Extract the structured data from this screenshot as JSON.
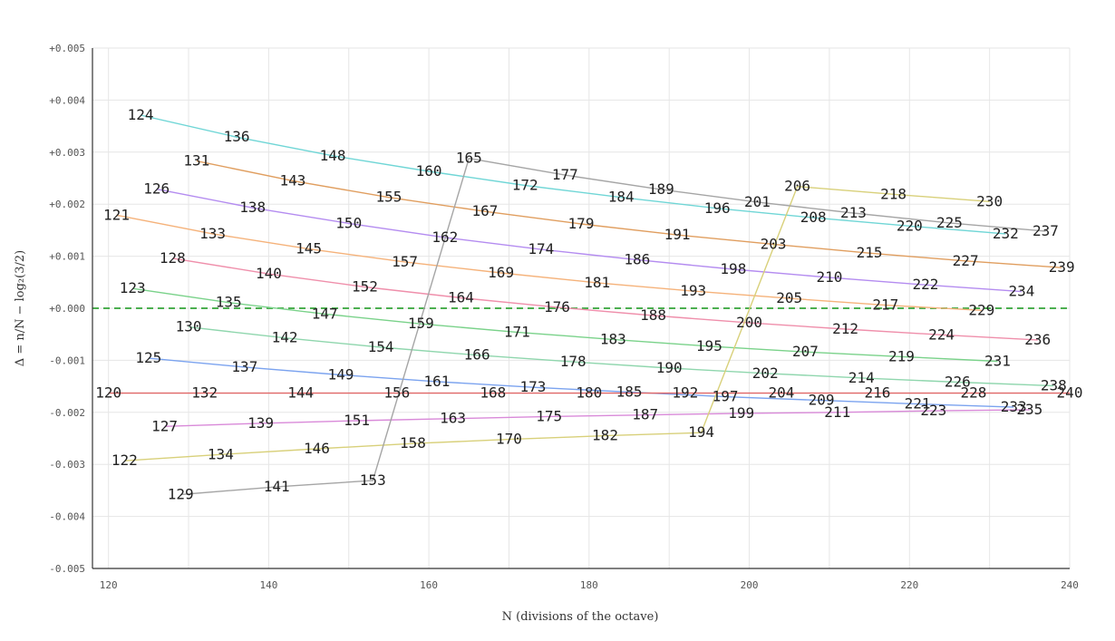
{
  "chart_data": {
    "type": "line",
    "xlabel": "N (divisions of the octave)",
    "ylabel": "Δ = n/N − log₂(3/2)",
    "xlim": [
      118,
      240
    ],
    "ylim": [
      -0.005,
      0.005
    ],
    "xticks": [
      120,
      140,
      160,
      180,
      200,
      220,
      240
    ],
    "yticks": [
      {
        "value": 0.005,
        "label": "+0.005"
      },
      {
        "value": 0.004,
        "label": "+0.004"
      },
      {
        "value": 0.003,
        "label": "+0.003"
      },
      {
        "value": 0.002,
        "label": "+0.002"
      },
      {
        "value": 0.001,
        "label": "+0.001"
      },
      {
        "value": 0.0,
        "label": "+0.000"
      },
      {
        "value": -0.001,
        "label": "-0.001"
      },
      {
        "value": -0.002,
        "label": "-0.002"
      },
      {
        "value": -0.003,
        "label": "-0.003"
      },
      {
        "value": -0.004,
        "label": "-0.004"
      },
      {
        "value": -0.005,
        "label": "-0.005"
      }
    ],
    "zero_line": {
      "value": 0,
      "color": "#4caf50",
      "style": "dashed"
    },
    "grid": true,
    "series": [
      {
        "color": "#70d6d6",
        "points": [
          [
            124,
            0.00371
          ],
          [
            136,
            0.00329
          ],
          [
            148,
            0.00293
          ],
          [
            160,
            0.00263
          ],
          [
            172,
            0.00236
          ],
          [
            184,
            0.00213
          ],
          [
            196,
            0.00192
          ],
          [
            208,
            0.00174
          ],
          [
            220,
            0.00158
          ],
          [
            232,
            0.00143
          ]
        ]
      },
      {
        "color": "#e09e5f",
        "points": [
          [
            131,
            0.00283
          ],
          [
            143,
            0.00245
          ],
          [
            155,
            0.00213
          ],
          [
            167,
            0.00186
          ],
          [
            179,
            0.00162
          ],
          [
            191,
            0.00141
          ],
          [
            203,
            0.00123
          ],
          [
            215,
            0.00106
          ],
          [
            227,
            0.00091
          ],
          [
            239,
            0.00078
          ]
        ]
      },
      {
        "color": "#b48cf0",
        "points": [
          [
            126,
            0.00229
          ],
          [
            138,
            0.00193
          ],
          [
            150,
            0.00163
          ],
          [
            162,
            0.00136
          ],
          [
            174,
            0.00113
          ],
          [
            186,
            0.00093
          ],
          [
            198,
            0.00075
          ],
          [
            210,
            0.00059
          ],
          [
            222,
            0.00045
          ],
          [
            234,
            0.00032
          ]
        ]
      },
      {
        "color": "#f5b27a",
        "points": [
          [
            121,
            0.00179
          ],
          [
            133,
            0.00143
          ],
          [
            145,
            0.00114
          ],
          [
            157,
            0.00089
          ],
          [
            169,
            0.00068
          ],
          [
            181,
            0.00049
          ],
          [
            193,
            0.00033
          ],
          [
            205,
            0.00019
          ],
          [
            217,
            6e-05
          ],
          [
            229,
            -4e-05
          ]
        ]
      },
      {
        "color": "#ef8fab",
        "points": [
          [
            128,
            0.00096
          ],
          [
            140,
            0.00066
          ],
          [
            152,
            0.00041
          ],
          [
            164,
            0.0002
          ],
          [
            176,
            2e-05
          ],
          [
            188,
            -0.00014
          ],
          [
            200,
            -0.00028
          ],
          [
            212,
            -0.0004
          ],
          [
            224,
            -0.00051
          ],
          [
            236,
            -0.00061
          ]
        ]
      },
      {
        "color": "#7ad28a",
        "points": [
          [
            123,
            0.00038
          ],
          [
            135,
            0.00011
          ],
          [
            147,
            -0.00011
          ],
          [
            159,
            -0.0003
          ],
          [
            171,
            -0.00046
          ],
          [
            183,
            -0.0006
          ],
          [
            195,
            -0.00073
          ],
          [
            207,
            -0.00084
          ],
          [
            219,
            -0.00093
          ],
          [
            231,
            -0.00102
          ]
        ]
      },
      {
        "color": "#8fd6ad",
        "points": [
          [
            130,
            -0.00036
          ],
          [
            142,
            -0.00057
          ],
          [
            154,
            -0.00075
          ],
          [
            166,
            -0.0009
          ],
          [
            178,
            -0.00103
          ],
          [
            190,
            -0.00115
          ],
          [
            202,
            -0.00125
          ],
          [
            214,
            -0.00134
          ],
          [
            226,
            -0.00142
          ],
          [
            238,
            -0.00149
          ]
        ]
      },
      {
        "color": "#7ba3ef",
        "points": [
          [
            125,
            -0.00096
          ],
          [
            137,
            -0.00113
          ],
          [
            149,
            -0.00128
          ],
          [
            161,
            -0.00141
          ],
          [
            173,
            -0.00152
          ],
          [
            185,
            -0.00161
          ],
          [
            197,
            -0.0017
          ],
          [
            209,
            -0.00177
          ],
          [
            221,
            -0.00184
          ],
          [
            233,
            -0.0019
          ]
        ]
      },
      {
        "color": "#e06666",
        "points": [
          [
            120,
            -0.00163
          ],
          [
            132,
            -0.00163
          ],
          [
            144,
            -0.00163
          ],
          [
            156,
            -0.00163
          ],
          [
            168,
            -0.00163
          ],
          [
            180,
            -0.00163
          ],
          [
            192,
            -0.00163
          ],
          [
            204,
            -0.00163
          ],
          [
            216,
            -0.00163
          ],
          [
            228,
            -0.00163
          ],
          [
            240,
            -0.00163
          ]
        ]
      },
      {
        "color": "#d98ad9",
        "points": [
          [
            127,
            -0.00227
          ],
          [
            139,
            -0.00221
          ],
          [
            151,
            -0.00216
          ],
          [
            163,
            -0.00212
          ],
          [
            175,
            -0.00208
          ],
          [
            187,
            -0.00205
          ],
          [
            199,
            -0.00202
          ],
          [
            211,
            -0.002
          ],
          [
            223,
            -0.00197
          ],
          [
            235,
            -0.00195
          ]
        ]
      },
      {
        "color": "#d8d07a",
        "points": [
          [
            122,
            -0.00293
          ],
          [
            134,
            -0.00281
          ],
          [
            146,
            -0.0027
          ],
          [
            158,
            -0.0026
          ],
          [
            170,
            -0.00252
          ],
          [
            182,
            -0.00245
          ],
          [
            194,
            -0.00239
          ],
          [
            206,
            0.00234
          ]
        ]
      },
      {
        "color": "#d8d07a",
        "points": [
          [
            206,
            0.00234
          ],
          [
            218,
            0.00219
          ],
          [
            230,
            0.00205
          ]
        ]
      },
      {
        "color": "#a5a5a5",
        "points": [
          [
            129,
            -0.00358
          ],
          [
            141,
            -0.00343
          ],
          [
            153,
            -0.00331
          ],
          [
            165,
            0.00288
          ],
          [
            177,
            0.00256
          ],
          [
            189,
            0.00228
          ],
          [
            201,
            0.00204
          ],
          [
            213,
            0.00183
          ],
          [
            225,
            0.00164
          ],
          [
            237,
            0.00148
          ]
        ]
      }
    ],
    "labels": [
      {
        "text": "124",
        "x": 124,
        "y": 0.00371
      },
      {
        "text": "136",
        "x": 136,
        "y": 0.00329
      },
      {
        "text": "148",
        "x": 148,
        "y": 0.00293
      },
      {
        "text": "160",
        "x": 160,
        "y": 0.00263
      },
      {
        "text": "172",
        "x": 172,
        "y": 0.00236
      },
      {
        "text": "184",
        "x": 184,
        "y": 0.00213
      },
      {
        "text": "196",
        "x": 196,
        "y": 0.00192
      },
      {
        "text": "208",
        "x": 208,
        "y": 0.00174
      },
      {
        "text": "220",
        "x": 220,
        "y": 0.00158
      },
      {
        "text": "232",
        "x": 232,
        "y": 0.00143
      },
      {
        "text": "131",
        "x": 131,
        "y": 0.00283
      },
      {
        "text": "143",
        "x": 143,
        "y": 0.00245
      },
      {
        "text": "155",
        "x": 155,
        "y": 0.00213
      },
      {
        "text": "167",
        "x": 167,
        "y": 0.00186
      },
      {
        "text": "179",
        "x": 179,
        "y": 0.00162
      },
      {
        "text": "191",
        "x": 191,
        "y": 0.00141
      },
      {
        "text": "203",
        "x": 203,
        "y": 0.00123
      },
      {
        "text": "215",
        "x": 215,
        "y": 0.00106
      },
      {
        "text": "227",
        "x": 227,
        "y": 0.00091
      },
      {
        "text": "239",
        "x": 239,
        "y": 0.00078
      },
      {
        "text": "126",
        "x": 126,
        "y": 0.00229
      },
      {
        "text": "138",
        "x": 138,
        "y": 0.00193
      },
      {
        "text": "150",
        "x": 150,
        "y": 0.00163
      },
      {
        "text": "162",
        "x": 162,
        "y": 0.00136
      },
      {
        "text": "174",
        "x": 174,
        "y": 0.00113
      },
      {
        "text": "186",
        "x": 186,
        "y": 0.00093
      },
      {
        "text": "198",
        "x": 198,
        "y": 0.00075
      },
      {
        "text": "210",
        "x": 210,
        "y": 0.00059
      },
      {
        "text": "222",
        "x": 222,
        "y": 0.00045
      },
      {
        "text": "234",
        "x": 234,
        "y": 0.00032
      },
      {
        "text": "121",
        "x": 121,
        "y": 0.00179
      },
      {
        "text": "133",
        "x": 133,
        "y": 0.00143
      },
      {
        "text": "145",
        "x": 145,
        "y": 0.00114
      },
      {
        "text": "157",
        "x": 157,
        "y": 0.00089
      },
      {
        "text": "169",
        "x": 169,
        "y": 0.00068
      },
      {
        "text": "181",
        "x": 181,
        "y": 0.00049
      },
      {
        "text": "193",
        "x": 193,
        "y": 0.00033
      },
      {
        "text": "205",
        "x": 205,
        "y": 0.00019
      },
      {
        "text": "217",
        "x": 217,
        "y": 6e-05
      },
      {
        "text": "229",
        "x": 229,
        "y": -4e-05
      },
      {
        "text": "128",
        "x": 128,
        "y": 0.00096
      },
      {
        "text": "140",
        "x": 140,
        "y": 0.00066
      },
      {
        "text": "152",
        "x": 152,
        "y": 0.00041
      },
      {
        "text": "164",
        "x": 164,
        "y": 0.0002
      },
      {
        "text": "176",
        "x": 176,
        "y": 2e-05
      },
      {
        "text": "188",
        "x": 188,
        "y": -0.00014
      },
      {
        "text": "200",
        "x": 200,
        "y": -0.00028
      },
      {
        "text": "212",
        "x": 212,
        "y": -0.0004
      },
      {
        "text": "224",
        "x": 224,
        "y": -0.00051
      },
      {
        "text": "236",
        "x": 236,
        "y": -0.00061
      },
      {
        "text": "123",
        "x": 123,
        "y": 0.00038
      },
      {
        "text": "135",
        "x": 135,
        "y": 0.00011
      },
      {
        "text": "147",
        "x": 147,
        "y": -0.00011
      },
      {
        "text": "159",
        "x": 159,
        "y": -0.0003
      },
      {
        "text": "171",
        "x": 171,
        "y": -0.00046
      },
      {
        "text": "183",
        "x": 183,
        "y": -0.0006
      },
      {
        "text": "195",
        "x": 195,
        "y": -0.00073
      },
      {
        "text": "207",
        "x": 207,
        "y": -0.00084
      },
      {
        "text": "219",
        "x": 219,
        "y": -0.00093
      },
      {
        "text": "231",
        "x": 231,
        "y": -0.00102
      },
      {
        "text": "130",
        "x": 130,
        "y": -0.00036
      },
      {
        "text": "142",
        "x": 142,
        "y": -0.00057
      },
      {
        "text": "154",
        "x": 154,
        "y": -0.00075
      },
      {
        "text": "166",
        "x": 166,
        "y": -0.0009
      },
      {
        "text": "178",
        "x": 178,
        "y": -0.00103
      },
      {
        "text": "190",
        "x": 190,
        "y": -0.00115
      },
      {
        "text": "202",
        "x": 202,
        "y": -0.00125
      },
      {
        "text": "214",
        "x": 214,
        "y": -0.00134
      },
      {
        "text": "226",
        "x": 226,
        "y": -0.00142
      },
      {
        "text": "238",
        "x": 238,
        "y": -0.00149
      },
      {
        "text": "125",
        "x": 125,
        "y": -0.00096
      },
      {
        "text": "137",
        "x": 137,
        "y": -0.00113
      },
      {
        "text": "149",
        "x": 149,
        "y": -0.00128
      },
      {
        "text": "161",
        "x": 161,
        "y": -0.00141
      },
      {
        "text": "173",
        "x": 173,
        "y": -0.00152
      },
      {
        "text": "185",
        "x": 185,
        "y": -0.00161
      },
      {
        "text": "197",
        "x": 197,
        "y": -0.0017
      },
      {
        "text": "209",
        "x": 209,
        "y": -0.00177
      },
      {
        "text": "221",
        "x": 221,
        "y": -0.00184
      },
      {
        "text": "233",
        "x": 233,
        "y": -0.0019
      },
      {
        "text": "120",
        "x": 120,
        "y": -0.00163
      },
      {
        "text": "132",
        "x": 132,
        "y": -0.00163
      },
      {
        "text": "144",
        "x": 144,
        "y": -0.00163
      },
      {
        "text": "156",
        "x": 156,
        "y": -0.00163
      },
      {
        "text": "168",
        "x": 168,
        "y": -0.00163
      },
      {
        "text": "180",
        "x": 180,
        "y": -0.00163
      },
      {
        "text": "192",
        "x": 192,
        "y": -0.00163
      },
      {
        "text": "204",
        "x": 204,
        "y": -0.00163
      },
      {
        "text": "216",
        "x": 216,
        "y": -0.00163
      },
      {
        "text": "228",
        "x": 228,
        "y": -0.00163
      },
      {
        "text": "240",
        "x": 240,
        "y": -0.00163
      },
      {
        "text": "127",
        "x": 127,
        "y": -0.00227
      },
      {
        "text": "139",
        "x": 139,
        "y": -0.00221
      },
      {
        "text": "151",
        "x": 151,
        "y": -0.00216
      },
      {
        "text": "163",
        "x": 163,
        "y": -0.00212
      },
      {
        "text": "175",
        "x": 175,
        "y": -0.00208
      },
      {
        "text": "187",
        "x": 187,
        "y": -0.00205
      },
      {
        "text": "199",
        "x": 199,
        "y": -0.00202
      },
      {
        "text": "211",
        "x": 211,
        "y": -0.002
      },
      {
        "text": "223",
        "x": 223,
        "y": -0.00197
      },
      {
        "text": "235",
        "x": 235,
        "y": -0.00195
      },
      {
        "text": "122",
        "x": 122,
        "y": -0.00293
      },
      {
        "text": "134",
        "x": 134,
        "y": -0.00281
      },
      {
        "text": "146",
        "x": 146,
        "y": -0.0027
      },
      {
        "text": "158",
        "x": 158,
        "y": -0.0026
      },
      {
        "text": "170",
        "x": 170,
        "y": -0.00252
      },
      {
        "text": "182",
        "x": 182,
        "y": -0.00245
      },
      {
        "text": "194",
        "x": 194,
        "y": -0.00239
      },
      {
        "text": "206",
        "x": 206,
        "y": 0.00234
      },
      {
        "text": "218",
        "x": 218,
        "y": 0.00219
      },
      {
        "text": "230",
        "x": 230,
        "y": 0.00205
      },
      {
        "text": "129",
        "x": 129,
        "y": -0.00358
      },
      {
        "text": "141",
        "x": 141,
        "y": -0.00343
      },
      {
        "text": "153",
        "x": 153,
        "y": -0.00331
      },
      {
        "text": "165",
        "x": 165,
        "y": 0.00288
      },
      {
        "text": "177",
        "x": 177,
        "y": 0.00256
      },
      {
        "text": "189",
        "x": 189,
        "y": 0.00228
      },
      {
        "text": "201",
        "x": 201,
        "y": 0.00204
      },
      {
        "text": "213",
        "x": 213,
        "y": 0.00183
      },
      {
        "text": "225",
        "x": 225,
        "y": 0.00164
      },
      {
        "text": "237",
        "x": 237,
        "y": 0.00148
      }
    ]
  }
}
